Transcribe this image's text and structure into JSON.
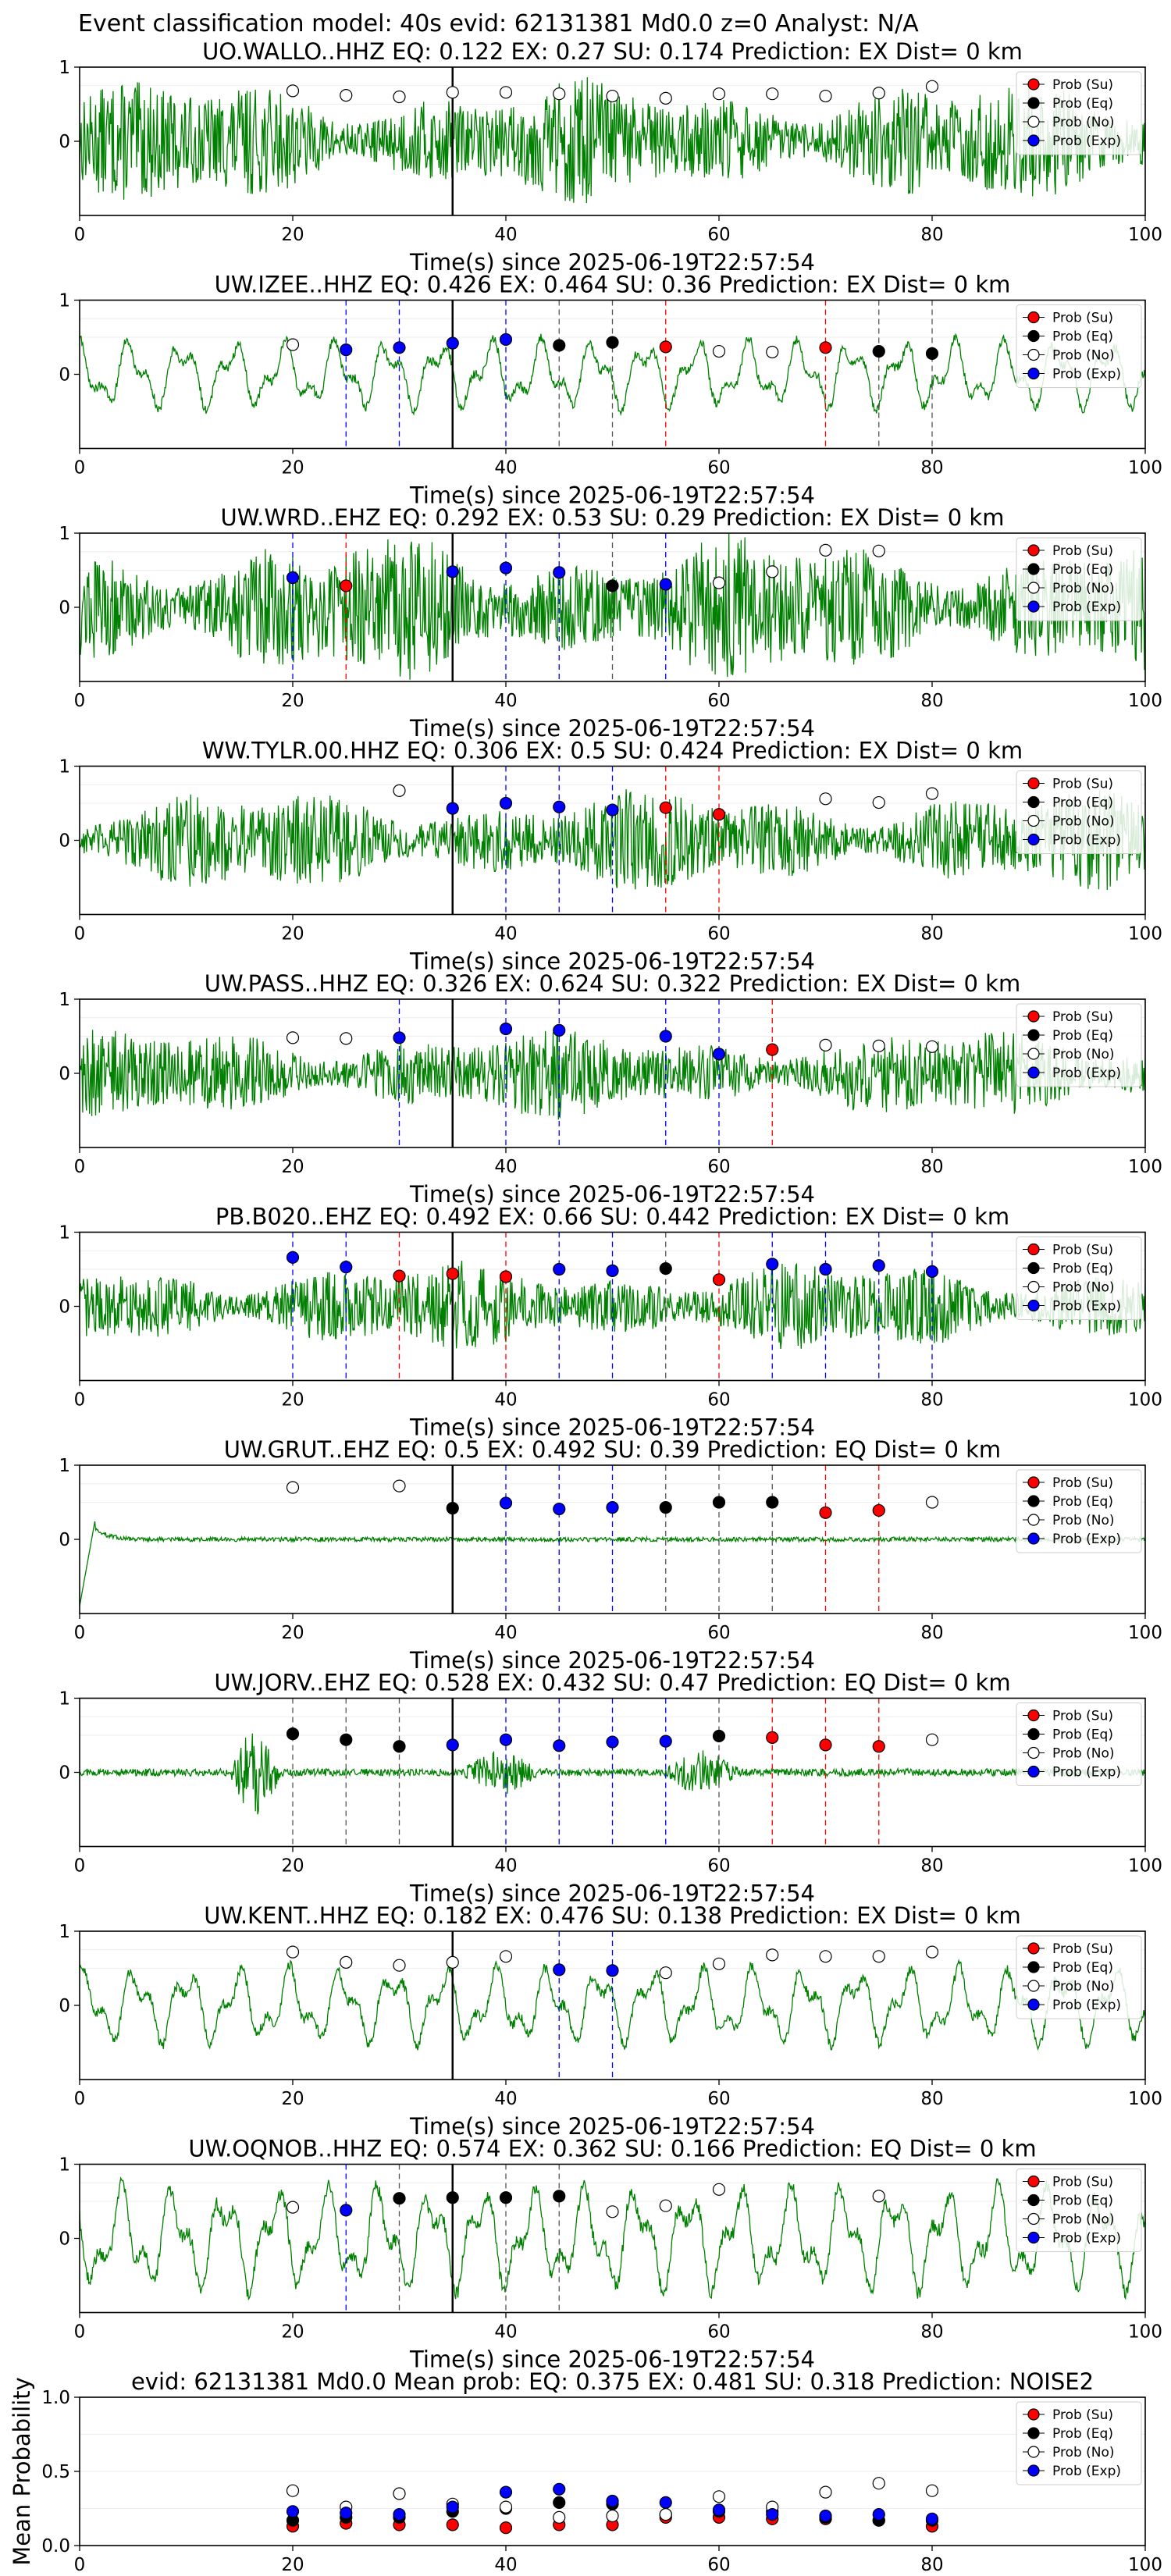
{
  "page_title": "Event classification model: 40s evid: 62131381 Md0.0 z=0 Analyst: N/A",
  "legend": [
    "Prob (Su)",
    "Prob (Eq)",
    "Prob (No)",
    "Prob (Exp)"
  ],
  "colors": {
    "su": "#ff0000",
    "eq": "#000000",
    "no": "#ffffff",
    "exp": "#0000ff",
    "waveform": "#008000"
  },
  "chart_data": [
    {
      "type": "line",
      "title": "UO.WALLO..HHZ   EQ: 0.122  EX: 0.27  SU: 0.174   Prediction: EX    Dist= 0 km",
      "xlabel": "Time(s) since 2025-06-19T22:57:54",
      "xlim": [
        0,
        100
      ],
      "ylim": [
        -1,
        1
      ],
      "xticks": [
        "0",
        "20",
        "40",
        "60",
        "80",
        "100"
      ],
      "yticks": [
        "1",
        "0"
      ],
      "amplitude": 0.55,
      "waveform_style": "noise",
      "marker_time": 35,
      "points": [
        {
          "t": 20,
          "v": 0.68,
          "c": "no"
        },
        {
          "t": 25,
          "v": 0.62,
          "c": "no"
        },
        {
          "t": 30,
          "v": 0.6,
          "c": "no"
        },
        {
          "t": 35,
          "v": 0.66,
          "c": "no"
        },
        {
          "t": 40,
          "v": 0.66,
          "c": "no"
        },
        {
          "t": 45,
          "v": 0.64,
          "c": "no"
        },
        {
          "t": 50,
          "v": 0.61,
          "c": "no"
        },
        {
          "t": 55,
          "v": 0.58,
          "c": "no"
        },
        {
          "t": 60,
          "v": 0.64,
          "c": "no"
        },
        {
          "t": 65,
          "v": 0.64,
          "c": "no"
        },
        {
          "t": 70,
          "v": 0.61,
          "c": "no"
        },
        {
          "t": 75,
          "v": 0.65,
          "c": "no"
        },
        {
          "t": 80,
          "v": 0.74,
          "c": "no"
        }
      ]
    },
    {
      "type": "line",
      "title": "UW.IZEE..HHZ   EQ: 0.426  EX: 0.464  SU: 0.36   Prediction: EX    Dist= 0 km",
      "xlabel": "Time(s) since 2025-06-19T22:57:54",
      "xlim": [
        0,
        100
      ],
      "ylim": [
        -1,
        1
      ],
      "xticks": [
        "0",
        "20",
        "40",
        "60",
        "80",
        "100"
      ],
      "yticks": [
        "1",
        "0"
      ],
      "amplitude": 0.5,
      "waveform_style": "slow",
      "marker_time": 35,
      "points": [
        {
          "t": 20,
          "v": 0.4,
          "c": "no"
        },
        {
          "t": 25,
          "v": 0.33,
          "c": "exp"
        },
        {
          "t": 30,
          "v": 0.36,
          "c": "exp"
        },
        {
          "t": 35,
          "v": 0.42,
          "c": "exp"
        },
        {
          "t": 40,
          "v": 0.47,
          "c": "exp"
        },
        {
          "t": 45,
          "v": 0.39,
          "c": "eq"
        },
        {
          "t": 50,
          "v": 0.43,
          "c": "eq"
        },
        {
          "t": 55,
          "v": 0.37,
          "c": "su"
        },
        {
          "t": 60,
          "v": 0.31,
          "c": "no"
        },
        {
          "t": 65,
          "v": 0.3,
          "c": "no"
        },
        {
          "t": 70,
          "v": 0.36,
          "c": "su"
        },
        {
          "t": 75,
          "v": 0.31,
          "c": "eq"
        },
        {
          "t": 80,
          "v": 0.28,
          "c": "eq"
        }
      ]
    },
    {
      "type": "line",
      "title": "UW.WRD..EHZ   EQ: 0.292  EX: 0.53  SU: 0.29   Prediction: EX    Dist= 0 km",
      "xlabel": "Time(s) since 2025-06-19T22:57:54",
      "xlim": [
        0,
        100
      ],
      "ylim": [
        -1,
        1
      ],
      "xticks": [
        "0",
        "20",
        "40",
        "60",
        "80",
        "100"
      ],
      "yticks": [
        "1",
        "0"
      ],
      "amplitude": 0.65,
      "waveform_style": "noise",
      "marker_time": 35,
      "points": [
        {
          "t": 20,
          "v": 0.4,
          "c": "exp"
        },
        {
          "t": 25,
          "v": 0.29,
          "c": "su"
        },
        {
          "t": 35,
          "v": 0.48,
          "c": "exp"
        },
        {
          "t": 40,
          "v": 0.53,
          "c": "exp"
        },
        {
          "t": 45,
          "v": 0.47,
          "c": "exp"
        },
        {
          "t": 50,
          "v": 0.29,
          "c": "eq"
        },
        {
          "t": 55,
          "v": 0.31,
          "c": "exp"
        },
        {
          "t": 60,
          "v": 0.33,
          "c": "no"
        },
        {
          "t": 65,
          "v": 0.48,
          "c": "no"
        },
        {
          "t": 70,
          "v": 0.77,
          "c": "no"
        },
        {
          "t": 75,
          "v": 0.76,
          "c": "no"
        }
      ]
    },
    {
      "type": "line",
      "title": "WW.TYLR.00.HHZ   EQ: 0.306  EX: 0.5  SU: 0.424   Prediction: EX    Dist= 0 km",
      "xlabel": "Time(s) since 2025-06-19T22:57:54",
      "xlim": [
        0,
        100
      ],
      "ylim": [
        -1,
        1
      ],
      "xticks": [
        "0",
        "20",
        "40",
        "60",
        "80",
        "100"
      ],
      "yticks": [
        "1",
        "0"
      ],
      "amplitude": 0.45,
      "waveform_style": "noise",
      "marker_time": 35,
      "points": [
        {
          "t": 30,
          "v": 0.67,
          "c": "no"
        },
        {
          "t": 35,
          "v": 0.43,
          "c": "exp"
        },
        {
          "t": 40,
          "v": 0.5,
          "c": "exp"
        },
        {
          "t": 45,
          "v": 0.45,
          "c": "exp"
        },
        {
          "t": 50,
          "v": 0.41,
          "c": "exp"
        },
        {
          "t": 55,
          "v": 0.44,
          "c": "su"
        },
        {
          "t": 60,
          "v": 0.35,
          "c": "su"
        },
        {
          "t": 70,
          "v": 0.56,
          "c": "no"
        },
        {
          "t": 75,
          "v": 0.51,
          "c": "no"
        },
        {
          "t": 80,
          "v": 0.63,
          "c": "no"
        }
      ]
    },
    {
      "type": "line",
      "title": "UW.PASS..HHZ   EQ: 0.326  EX: 0.624  SU: 0.322   Prediction: EX    Dist= 0 km",
      "xlabel": "Time(s) since 2025-06-19T22:57:54",
      "xlim": [
        0,
        100
      ],
      "ylim": [
        -1,
        1
      ],
      "xticks": [
        "0",
        "20",
        "40",
        "60",
        "80",
        "100"
      ],
      "yticks": [
        "1",
        "0"
      ],
      "amplitude": 0.4,
      "waveform_style": "noise",
      "marker_time": 35,
      "points": [
        {
          "t": 20,
          "v": 0.48,
          "c": "no"
        },
        {
          "t": 25,
          "v": 0.47,
          "c": "no"
        },
        {
          "t": 30,
          "v": 0.48,
          "c": "exp"
        },
        {
          "t": 40,
          "v": 0.6,
          "c": "exp"
        },
        {
          "t": 45,
          "v": 0.58,
          "c": "exp"
        },
        {
          "t": 55,
          "v": 0.5,
          "c": "exp"
        },
        {
          "t": 60,
          "v": 0.26,
          "c": "exp"
        },
        {
          "t": 65,
          "v": 0.32,
          "c": "su"
        },
        {
          "t": 70,
          "v": 0.38,
          "c": "no"
        },
        {
          "t": 75,
          "v": 0.37,
          "c": "no"
        },
        {
          "t": 80,
          "v": 0.36,
          "c": "no"
        }
      ]
    },
    {
      "type": "line",
      "title": "PB.B020..EHZ   EQ: 0.492  EX: 0.66  SU: 0.442   Prediction: EX    Dist= 0 km",
      "xlabel": "Time(s) since 2025-06-19T22:57:54",
      "xlim": [
        0,
        100
      ],
      "ylim": [
        -1,
        1
      ],
      "xticks": [
        "0",
        "20",
        "40",
        "60",
        "80",
        "100"
      ],
      "yticks": [
        "1",
        "0"
      ],
      "amplitude": 0.4,
      "waveform_style": "noise",
      "marker_time": 35,
      "points": [
        {
          "t": 20,
          "v": 0.66,
          "c": "exp"
        },
        {
          "t": 25,
          "v": 0.53,
          "c": "exp"
        },
        {
          "t": 30,
          "v": 0.41,
          "c": "su"
        },
        {
          "t": 35,
          "v": 0.44,
          "c": "su"
        },
        {
          "t": 40,
          "v": 0.4,
          "c": "su"
        },
        {
          "t": 45,
          "v": 0.5,
          "c": "exp"
        },
        {
          "t": 50,
          "v": 0.48,
          "c": "exp"
        },
        {
          "t": 55,
          "v": 0.51,
          "c": "eq"
        },
        {
          "t": 60,
          "v": 0.36,
          "c": "su"
        },
        {
          "t": 65,
          "v": 0.57,
          "c": "exp"
        },
        {
          "t": 70,
          "v": 0.5,
          "c": "exp"
        },
        {
          "t": 75,
          "v": 0.55,
          "c": "exp"
        },
        {
          "t": 80,
          "v": 0.47,
          "c": "exp"
        }
      ]
    },
    {
      "type": "line",
      "title": "UW.GRUT..EHZ   EQ: 0.5  EX: 0.492  SU: 0.39   Prediction: EQ    Dist= 0 km",
      "xlabel": "Time(s) since 2025-06-19T22:57:54",
      "xlim": [
        0,
        100
      ],
      "ylim": [
        -1,
        1
      ],
      "xticks": [
        "0",
        "20",
        "40",
        "60",
        "80",
        "100"
      ],
      "yticks": [
        "1",
        "0"
      ],
      "amplitude": 0.03,
      "waveform_style": "flat",
      "marker_time": 35,
      "points": [
        {
          "t": 20,
          "v": 0.7,
          "c": "no"
        },
        {
          "t": 30,
          "v": 0.72,
          "c": "no"
        },
        {
          "t": 35,
          "v": 0.42,
          "c": "eq"
        },
        {
          "t": 40,
          "v": 0.49,
          "c": "exp"
        },
        {
          "t": 45,
          "v": 0.41,
          "c": "exp"
        },
        {
          "t": 50,
          "v": 0.43,
          "c": "exp"
        },
        {
          "t": 55,
          "v": 0.43,
          "c": "eq"
        },
        {
          "t": 60,
          "v": 0.5,
          "c": "eq"
        },
        {
          "t": 65,
          "v": 0.5,
          "c": "eq"
        },
        {
          "t": 70,
          "v": 0.36,
          "c": "su"
        },
        {
          "t": 75,
          "v": 0.39,
          "c": "su"
        },
        {
          "t": 80,
          "v": 0.5,
          "c": "no"
        }
      ]
    },
    {
      "type": "line",
      "title": "UW.JORV..EHZ   EQ: 0.528  EX: 0.432  SU: 0.47   Prediction: EQ    Dist= 0 km",
      "xlabel": "Time(s) since 2025-06-19T22:57:54",
      "xlim": [
        0,
        100
      ],
      "ylim": [
        -1,
        1
      ],
      "xticks": [
        "0",
        "20",
        "40",
        "60",
        "80",
        "100"
      ],
      "yticks": [
        "1",
        "0"
      ],
      "amplitude": 0.05,
      "waveform_style": "bursty",
      "marker_time": 35,
      "points": [
        {
          "t": 20,
          "v": 0.52,
          "c": "eq"
        },
        {
          "t": 25,
          "v": 0.44,
          "c": "eq"
        },
        {
          "t": 30,
          "v": 0.35,
          "c": "eq"
        },
        {
          "t": 35,
          "v": 0.37,
          "c": "exp"
        },
        {
          "t": 40,
          "v": 0.44,
          "c": "exp"
        },
        {
          "t": 45,
          "v": 0.36,
          "c": "exp"
        },
        {
          "t": 50,
          "v": 0.41,
          "c": "exp"
        },
        {
          "t": 55,
          "v": 0.42,
          "c": "exp"
        },
        {
          "t": 60,
          "v": 0.49,
          "c": "eq"
        },
        {
          "t": 65,
          "v": 0.47,
          "c": "su"
        },
        {
          "t": 70,
          "v": 0.37,
          "c": "su"
        },
        {
          "t": 75,
          "v": 0.35,
          "c": "su"
        },
        {
          "t": 80,
          "v": 0.44,
          "c": "no"
        }
      ]
    },
    {
      "type": "line",
      "title": "UW.KENT..HHZ   EQ: 0.182  EX: 0.476  SU: 0.138   Prediction: EX    Dist= 0 km",
      "xlabel": "Time(s) since 2025-06-19T22:57:54",
      "xlim": [
        0,
        100
      ],
      "ylim": [
        -1,
        1
      ],
      "xticks": [
        "0",
        "20",
        "40",
        "60",
        "80",
        "100"
      ],
      "yticks": [
        "1",
        "0"
      ],
      "amplitude": 0.55,
      "waveform_style": "slow",
      "marker_time": 35,
      "points": [
        {
          "t": 20,
          "v": 0.72,
          "c": "no"
        },
        {
          "t": 25,
          "v": 0.58,
          "c": "no"
        },
        {
          "t": 30,
          "v": 0.54,
          "c": "no"
        },
        {
          "t": 35,
          "v": 0.58,
          "c": "no"
        },
        {
          "t": 40,
          "v": 0.66,
          "c": "no"
        },
        {
          "t": 45,
          "v": 0.48,
          "c": "exp"
        },
        {
          "t": 50,
          "v": 0.47,
          "c": "exp"
        },
        {
          "t": 55,
          "v": 0.44,
          "c": "no"
        },
        {
          "t": 60,
          "v": 0.56,
          "c": "no"
        },
        {
          "t": 65,
          "v": 0.68,
          "c": "no"
        },
        {
          "t": 70,
          "v": 0.66,
          "c": "no"
        },
        {
          "t": 75,
          "v": 0.66,
          "c": "no"
        },
        {
          "t": 80,
          "v": 0.72,
          "c": "no"
        }
      ]
    },
    {
      "type": "line",
      "title": "UW.OQNOB..HHZ   EQ: 0.574  EX: 0.362  SU: 0.166   Prediction: EQ    Dist= 0 km",
      "xlabel": "Time(s) since 2025-06-19T22:57:54",
      "xlim": [
        0,
        100
      ],
      "ylim": [
        -1,
        1
      ],
      "xticks": [
        "0",
        "20",
        "40",
        "60",
        "80",
        "100"
      ],
      "yticks": [
        "1",
        "0"
      ],
      "amplitude": 0.75,
      "waveform_style": "slow",
      "marker_time": 35,
      "points": [
        {
          "t": 20,
          "v": 0.42,
          "c": "no"
        },
        {
          "t": 25,
          "v": 0.38,
          "c": "exp"
        },
        {
          "t": 30,
          "v": 0.54,
          "c": "eq"
        },
        {
          "t": 35,
          "v": 0.55,
          "c": "eq"
        },
        {
          "t": 40,
          "v": 0.55,
          "c": "eq"
        },
        {
          "t": 45,
          "v": 0.57,
          "c": "eq"
        },
        {
          "t": 50,
          "v": 0.36,
          "c": "no"
        },
        {
          "t": 55,
          "v": 0.44,
          "c": "no"
        },
        {
          "t": 60,
          "v": 0.66,
          "c": "no"
        },
        {
          "t": 75,
          "v": 0.57,
          "c": "no"
        }
      ]
    },
    {
      "type": "scatter",
      "title": "evid: 62131381  Md0.0   Mean prob:   EQ: 0.375  EX: 0.481  SU: 0.318   Prediction: NOISE2",
      "xlabel": "",
      "ylabel": "Mean Probability",
      "xlim": [
        0,
        100
      ],
      "ylim": [
        0,
        1
      ],
      "xticks": [
        "0",
        "20",
        "40",
        "60",
        "80",
        "100"
      ],
      "yticks": [
        "1.0",
        "0.5",
        "0.0"
      ],
      "x": [
        20,
        25,
        30,
        35,
        40,
        45,
        50,
        55,
        60,
        65,
        70,
        75,
        80
      ],
      "series": [
        {
          "name": "Prob (Su)",
          "key": "su",
          "values": [
            0.13,
            0.15,
            0.14,
            0.14,
            0.12,
            0.14,
            0.14,
            0.19,
            0.19,
            0.18,
            0.18,
            0.17,
            0.13
          ]
        },
        {
          "name": "Prob (Eq)",
          "key": "eq",
          "values": [
            0.17,
            0.19,
            0.19,
            0.23,
            0.25,
            0.29,
            0.28,
            0.21,
            0.23,
            0.23,
            0.19,
            0.17,
            0.17
          ]
        },
        {
          "name": "Prob (No)",
          "key": "no",
          "values": [
            0.37,
            0.26,
            0.35,
            0.28,
            0.26,
            0.19,
            0.2,
            0.21,
            0.33,
            0.26,
            0.36,
            0.42,
            0.37
          ]
        },
        {
          "name": "Prob (Exp)",
          "key": "exp",
          "values": [
            0.23,
            0.22,
            0.21,
            0.26,
            0.36,
            0.38,
            0.3,
            0.29,
            0.24,
            0.21,
            0.2,
            0.21,
            0.18
          ]
        }
      ]
    }
  ]
}
